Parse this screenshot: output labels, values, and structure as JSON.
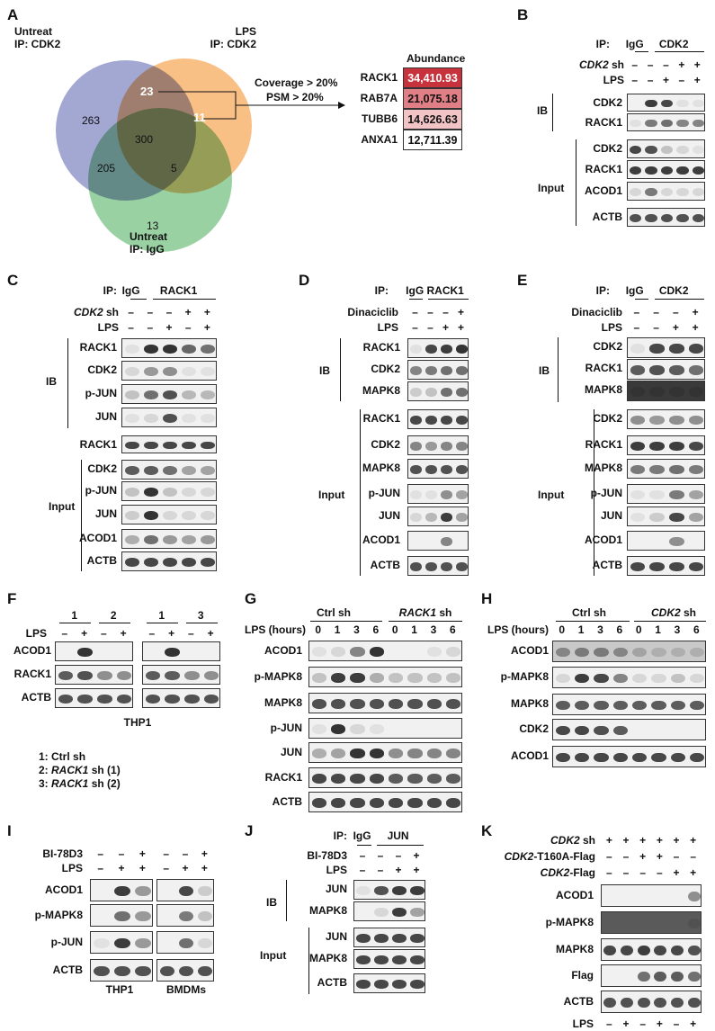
{
  "panels": {
    "A": {
      "label": "A",
      "venn": {
        "set_untreat_cdk2": "Untreat\nIP: CDK2",
        "set_lps_cdk2": "LPS\nIP: CDK2",
        "set_untreat_igg": "Untreat\nIP: IgG",
        "counts": {
          "only_untreat_cdk2": "263",
          "untreat_lps": "23",
          "only_lps": "11",
          "all": "300",
          "untreat_igg": "205",
          "lps_igg": "5",
          "only_igg": "13"
        },
        "colors": {
          "blue": "#6a73b8",
          "orange": "#f59a3c",
          "green": "#5cb56a"
        }
      },
      "criteria_1": "Coverage > 20%",
      "criteria_2": "PSM > 20%",
      "abundance_header": "Abundance",
      "abundance_rows": [
        {
          "protein": "RACK1",
          "value": "34,410.93",
          "color": "#c8323c",
          "text_color": "#ffffff"
        },
        {
          "protein": "RAB7A",
          "value": "21,075.18",
          "color": "#e07f86",
          "text_color": "#111111"
        },
        {
          "protein": "TUBB6",
          "value": "14,626.63",
          "color": "#f2c4c6",
          "text_color": "#111111"
        },
        {
          "protein": "ANXA1",
          "value": "12,711.39",
          "color": "#ffffff",
          "text_color": "#111111"
        }
      ]
    },
    "B": {
      "label": "B",
      "ip": "IP:",
      "igg": "IgG",
      "target": "CDK2",
      "sh_label": "CDK2",
      "sh_suffix": " sh",
      "lps": "LPS",
      "sh_row": [
        "–",
        "–",
        "–",
        "+",
        "+"
      ],
      "lps_row": [
        "–",
        "–",
        "+",
        "–",
        "+"
      ],
      "ib": "IB",
      "input": "Input",
      "ib_rows": [
        "CDK2",
        "RACK1"
      ],
      "input_rows": [
        "CDK2",
        "RACK1",
        "ACOD1",
        "ACTB"
      ]
    },
    "C": {
      "label": "C",
      "ip": "IP:",
      "igg": "IgG",
      "target": "RACK1",
      "sh_label": "CDK2",
      "sh_suffix": " sh",
      "lps": "LPS",
      "sh_row": [
        "–",
        "–",
        "–",
        "+",
        "+"
      ],
      "lps_row": [
        "–",
        "–",
        "+",
        "–",
        "+"
      ],
      "ib": "IB",
      "input": "Input",
      "ib_rows": [
        "RACK1",
        "CDK2",
        "p-JUN",
        "JUN"
      ],
      "mid_row": "RACK1",
      "input_rows": [
        "CDK2",
        "p-JUN",
        "JUN",
        "ACOD1",
        "ACTB"
      ]
    },
    "D": {
      "label": "D",
      "ip": "IP:",
      "igg": "IgG",
      "target": "RACK1",
      "treat": "Dinaciclib",
      "lps": "LPS",
      "treat_row": [
        "–",
        "–",
        "–",
        "+"
      ],
      "lps_row": [
        "–",
        "–",
        "+",
        "+"
      ],
      "ib": "IB",
      "input": "Input",
      "ib_rows": [
        "RACK1",
        "CDK2",
        "MAPK8"
      ],
      "input_rows": [
        "RACK1",
        "CDK2",
        "MAPK8",
        "p-JUN",
        "JUN",
        "ACOD1",
        "ACTB"
      ]
    },
    "E": {
      "label": "E",
      "ip": "IP:",
      "igg": "IgG",
      "target": "CDK2",
      "treat": "Dinaciclib",
      "lps": "LPS",
      "treat_row": [
        "–",
        "–",
        "–",
        "+"
      ],
      "lps_row": [
        "–",
        "–",
        "+",
        "+"
      ],
      "ib": "IB",
      "input": "Input",
      "ib_rows": [
        "CDK2",
        "RACK1",
        "MAPK8"
      ],
      "input_rows": [
        "CDK2",
        "RACK1",
        "MAPK8",
        "p-JUN",
        "JUN",
        "ACOD1",
        "ACTB"
      ]
    },
    "F": {
      "label": "F",
      "lps": "LPS",
      "groups": [
        "1",
        "2",
        "1",
        "3"
      ],
      "lps_row": [
        "–",
        "+",
        "–",
        "+",
        "–",
        "+",
        "–",
        "+"
      ],
      "rows": [
        "ACOD1",
        "RACK1",
        "ACTB"
      ],
      "cell": "THP1",
      "legend": [
        {
          "num": "1: ",
          "italic": "",
          "text": "Ctrl sh"
        },
        {
          "num": "2: ",
          "italic": "RACK1",
          "text": " sh (1)"
        },
        {
          "num": "3: ",
          "italic": "RACK1",
          "text": " sh (2)"
        }
      ]
    },
    "G": {
      "label": "G",
      "group1": "Ctrl sh",
      "group2_italic": "RACK1",
      "group2_suffix": " sh",
      "time_label": "LPS (hours)",
      "times": [
        "0",
        "1",
        "3",
        "6",
        "0",
        "1",
        "3",
        "6"
      ],
      "rows": [
        "ACOD1",
        "p-MAPK8",
        "MAPK8",
        "p-JUN",
        "JUN",
        "RACK1",
        "ACTB"
      ]
    },
    "H": {
      "label": "H",
      "group1": "Ctrl sh",
      "group2_italic": "CDK2",
      "group2_suffix": " sh",
      "time_label": "LPS (hours)",
      "times": [
        "0",
        "1",
        "3",
        "6",
        "0",
        "1",
        "3",
        "6"
      ],
      "rows": [
        "ACOD1",
        "p-MAPK8",
        "MAPK8",
        "CDK2",
        "ACOD1"
      ]
    },
    "I": {
      "label": "I",
      "inhibitor": "BI-78D3",
      "lps": "LPS",
      "inh_row": [
        "–",
        "–",
        "+",
        "–",
        "–",
        "+"
      ],
      "lps_row": [
        "–",
        "+",
        "+",
        "–",
        "+",
        "+"
      ],
      "rows": [
        "ACOD1",
        "p-MAPK8",
        "p-JUN",
        "ACTB"
      ],
      "cells": [
        "THP1",
        "BMDMs"
      ]
    },
    "J": {
      "label": "J",
      "ip": "IP:",
      "igg": "IgG",
      "target": "JUN",
      "inhibitor": "BI-78D3",
      "lps": "LPS",
      "inh_row": [
        "–",
        "–",
        "–",
        "+"
      ],
      "lps_row": [
        "–",
        "–",
        "+",
        "+"
      ],
      "ib": "IB",
      "input": "Input",
      "ib_rows": [
        "JUN",
        "MAPK8"
      ],
      "input_rows": [
        "JUN",
        "MAPK8",
        "ACTB"
      ]
    },
    "K": {
      "label": "K",
      "header_rows": [
        {
          "italic": "CDK2",
          "suffix": " sh",
          "values": [
            "+",
            "+",
            "+",
            "+",
            "+",
            "+"
          ]
        },
        {
          "italic": "CDK2",
          "suffix": "-T160A-Flag",
          "values": [
            "–",
            "–",
            "+",
            "+",
            "–",
            "–"
          ]
        },
        {
          "italic": "CDK2",
          "suffix": "-Flag",
          "values": [
            "–",
            "–",
            "–",
            "–",
            "+",
            "+"
          ]
        }
      ],
      "rows": [
        "ACOD1",
        "p-MAPK8",
        "MAPK8",
        "Flag",
        "ACTB"
      ],
      "lps": "LPS",
      "lps_row": [
        "–",
        "+",
        "–",
        "+",
        "–",
        "+"
      ]
    }
  }
}
